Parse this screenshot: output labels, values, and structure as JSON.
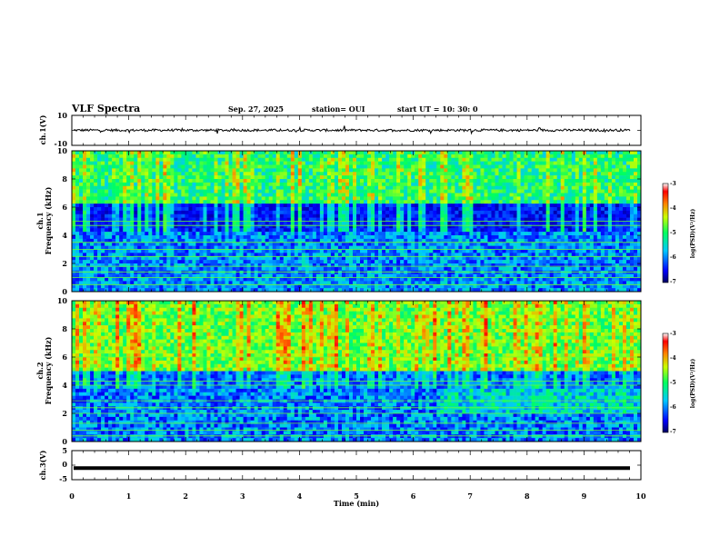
{
  "header": {
    "title": "VLF Spectra",
    "date": "Sep. 27, 2025",
    "station": "station= OUI",
    "start": "start  UT  =   10: 30: 0"
  },
  "chart_data": [
    {
      "type": "line",
      "name": "ch1-waveform",
      "ylabel": "ch.1(V)",
      "ylim": [
        -10,
        10
      ],
      "yticks": [
        "10",
        "-10"
      ],
      "xlim": [
        0,
        10
      ],
      "offset": 0.1
    },
    {
      "type": "heatmap",
      "name": "ch1-spectrogram",
      "ylabel": [
        "ch.1",
        "Frequency  (kHz)"
      ],
      "ylim": [
        0,
        10
      ],
      "yticks": [
        "0",
        "2",
        "4",
        "6",
        "8",
        "10"
      ],
      "xlim": [
        0,
        10
      ],
      "colorbar": {
        "label": "log(PSD)(V²/Hz)",
        "range": [
          -7,
          -3
        ],
        "ticks": [
          "-3",
          "-4",
          "-5",
          "-6",
          "-7"
        ]
      }
    },
    {
      "type": "heatmap",
      "name": "ch2-spectrogram",
      "ylabel": [
        "ch.2",
        "Frequency  (kHz)"
      ],
      "ylim": [
        0,
        10
      ],
      "yticks": [
        "0",
        "2",
        "4",
        "6",
        "8",
        "10"
      ],
      "xlim": [
        0,
        10
      ],
      "colorbar": {
        "label": "log(PSD)(V²/Hz)",
        "range": [
          -7,
          -3
        ],
        "ticks": [
          "-3",
          "-4",
          "-5",
          "-6",
          "-7"
        ]
      }
    },
    {
      "type": "line",
      "name": "ch3-waveform",
      "ylabel": "ch.3(V)",
      "ylim": [
        -5,
        5
      ],
      "yticks": [
        "5",
        "0",
        "-5"
      ],
      "xlim": [
        0,
        10
      ],
      "offset": -1.0
    }
  ],
  "xaxis": {
    "label": "Time  (min)",
    "ticks": [
      "0",
      "1",
      "2",
      "3",
      "4",
      "5",
      "6",
      "7",
      "8",
      "9",
      "10"
    ]
  },
  "colors": {
    "line": "#000000",
    "frame": "#000000"
  }
}
